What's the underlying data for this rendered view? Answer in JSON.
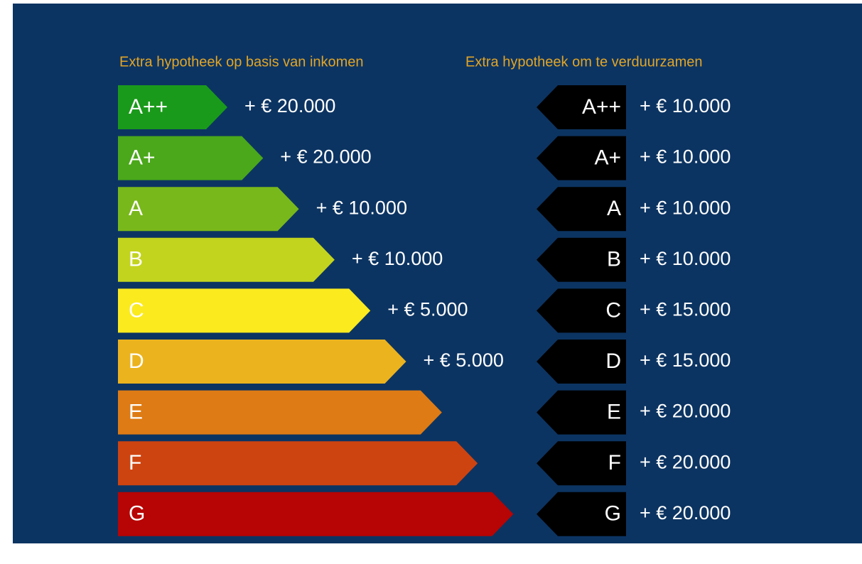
{
  "headers": {
    "left": "Extra hypotheek op basis van inkomen",
    "right": "Extra hypotheek om te verduurzamen"
  },
  "rows": [
    {
      "class": "A++",
      "color": "#1a9a1a",
      "income": "+ € 20.000",
      "sustain": "+ € 10.000"
    },
    {
      "class": "A+",
      "color": "#4aa81a",
      "income": "+ € 20.000",
      "sustain": "+ € 10.000"
    },
    {
      "class": "A",
      "color": "#79b81a",
      "income": "+ € 10.000",
      "sustain": "+ € 10.000"
    },
    {
      "class": "B",
      "color": "#c3d41e",
      "income": "+ € 10.000",
      "sustain": "+ € 10.000"
    },
    {
      "class": "C",
      "color": "#fbea1e",
      "income": "+ € 5.000",
      "sustain": "+ € 15.000"
    },
    {
      "class": "D",
      "color": "#ebb31e",
      "income": "+ € 5.000",
      "sustain": "+ € 15.000"
    },
    {
      "class": "E",
      "color": "#de7b14",
      "sustain": "+ € 20.000"
    },
    {
      "class": "F",
      "color": "#ce4410",
      "sustain": "+ € 20.000"
    },
    {
      "class": "G",
      "color": "#b70404",
      "sustain": "+ € 20.000"
    }
  ]
}
